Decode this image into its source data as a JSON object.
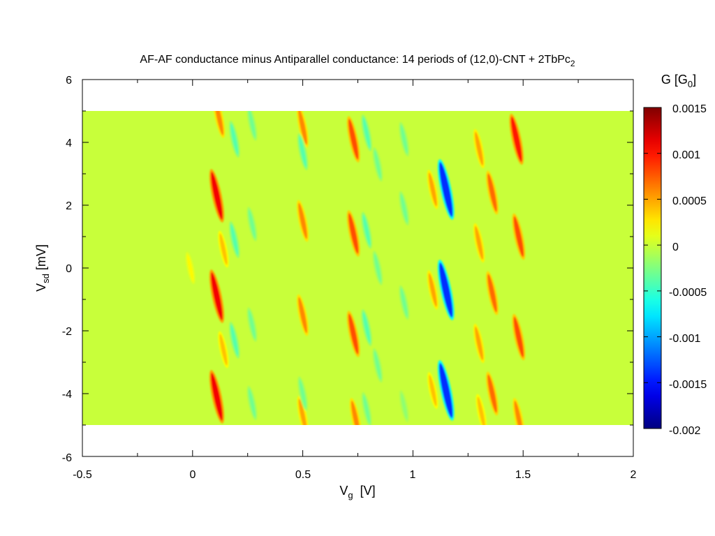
{
  "chart_data": {
    "type": "heatmap",
    "title": "AF-AF conductance minus Antiparallel conductance: 14 periods of (12,0)-CNT + 2TbPc",
    "title_subscript": "2",
    "xlabel_main": "V",
    "xlabel_sub": "g",
    "xlabel_unit": "  [V]",
    "ylabel_main": "V",
    "ylabel_sub": "sd",
    "ylabel_unit": " [mV]",
    "colorbar_label_main": "G [G",
    "colorbar_label_sub": "0",
    "colorbar_label_end": "]",
    "xlim": [
      -0.5,
      2
    ],
    "ylim": [
      -6,
      6
    ],
    "data_extent": {
      "x": [
        -0.5,
        2
      ],
      "y": [
        -5,
        5
      ]
    },
    "x_ticks": [
      "-0.5",
      "0",
      "0.5",
      "1",
      "1.5",
      "2"
    ],
    "y_ticks": [
      "6",
      "4",
      "2",
      "0",
      "-2",
      "-4",
      "-6"
    ],
    "colorbar_range": [
      -0.002,
      0.0015
    ],
    "colorbar_ticks": [
      "0.0015",
      "0.001",
      "0.0005",
      "0",
      "-0.0005",
      "-0.001",
      "-0.0015",
      "-0.002"
    ],
    "colormap": "jet",
    "background_value": 0,
    "background_color": "#c8ff3a",
    "features": [
      {
        "vg": 0.11,
        "vsd": 2.3,
        "amp": 0.0011
      },
      {
        "vg": 0.11,
        "vsd": -0.9,
        "amp": 0.0011
      },
      {
        "vg": 0.11,
        "vsd": -4.1,
        "amp": 0.0011
      },
      {
        "vg": 0.12,
        "vsd": 4.8,
        "amp": 0.0006
      },
      {
        "vg": 0.14,
        "vsd": 0.6,
        "amp": 0.0004
      },
      {
        "vg": 0.14,
        "vsd": -2.6,
        "amp": 0.0004
      },
      {
        "vg": -0.01,
        "vsd": 0.0,
        "amp": 0.0002
      },
      {
        "vg": 0.19,
        "vsd": 4.1,
        "amp": -0.0004
      },
      {
        "vg": 0.19,
        "vsd": 0.9,
        "amp": -0.0004
      },
      {
        "vg": 0.19,
        "vsd": -2.3,
        "amp": -0.0004
      },
      {
        "vg": 0.27,
        "vsd": 4.6,
        "amp": -0.0003
      },
      {
        "vg": 0.27,
        "vsd": 1.4,
        "amp": -0.0003
      },
      {
        "vg": 0.27,
        "vsd": -1.8,
        "amp": -0.0003
      },
      {
        "vg": 0.27,
        "vsd": -4.3,
        "amp": -0.0003
      },
      {
        "vg": 0.5,
        "vsd": 4.5,
        "amp": 0.0006
      },
      {
        "vg": 0.5,
        "vsd": 1.5,
        "amp": 0.0006
      },
      {
        "vg": 0.5,
        "vsd": -1.5,
        "amp": 0.0006
      },
      {
        "vg": 0.5,
        "vsd": -4.7,
        "amp": 0.0005
      },
      {
        "vg": 0.5,
        "vsd": 3.7,
        "amp": -0.0004
      },
      {
        "vg": 0.5,
        "vsd": -4.0,
        "amp": -0.0003
      },
      {
        "vg": 0.73,
        "vsd": 4.1,
        "amp": 0.0008
      },
      {
        "vg": 0.73,
        "vsd": 1.1,
        "amp": 0.0008
      },
      {
        "vg": 0.73,
        "vsd": -2.1,
        "amp": 0.0008
      },
      {
        "vg": 0.74,
        "vsd": -4.8,
        "amp": 0.0006
      },
      {
        "vg": 0.79,
        "vsd": 4.3,
        "amp": -0.0004
      },
      {
        "vg": 0.79,
        "vsd": 1.2,
        "amp": -0.0004
      },
      {
        "vg": 0.79,
        "vsd": -1.9,
        "amp": -0.0004
      },
      {
        "vg": 0.79,
        "vsd": -4.5,
        "amp": -0.0003
      },
      {
        "vg": 0.84,
        "vsd": 3.3,
        "amp": -0.0003
      },
      {
        "vg": 0.84,
        "vsd": 0.0,
        "amp": -0.0003
      },
      {
        "vg": 0.84,
        "vsd": -3.1,
        "amp": -0.0003
      },
      {
        "vg": 0.96,
        "vsd": 4.1,
        "amp": -0.0003
      },
      {
        "vg": 0.96,
        "vsd": 1.9,
        "amp": -0.0003
      },
      {
        "vg": 0.96,
        "vsd": -1.1,
        "amp": -0.0003
      },
      {
        "vg": 0.96,
        "vsd": -4.4,
        "amp": -0.0002
      },
      {
        "vg": 1.09,
        "vsd": 2.5,
        "amp": 0.0005
      },
      {
        "vg": 1.09,
        "vsd": -0.7,
        "amp": 0.0005
      },
      {
        "vg": 1.09,
        "vsd": -3.9,
        "amp": 0.0004
      },
      {
        "vg": 1.15,
        "vsd": 2.5,
        "amp": -0.0014
      },
      {
        "vg": 1.15,
        "vsd": -0.7,
        "amp": -0.0014
      },
      {
        "vg": 1.15,
        "vsd": -3.9,
        "amp": -0.0014
      },
      {
        "vg": 1.3,
        "vsd": 3.8,
        "amp": 0.0005
      },
      {
        "vg": 1.3,
        "vsd": 0.8,
        "amp": 0.0005
      },
      {
        "vg": 1.3,
        "vsd": -2.4,
        "amp": 0.0005
      },
      {
        "vg": 1.31,
        "vsd": -4.6,
        "amp": 0.0004
      },
      {
        "vg": 1.36,
        "vsd": 2.4,
        "amp": 0.0007
      },
      {
        "vg": 1.36,
        "vsd": -0.8,
        "amp": 0.0007
      },
      {
        "vg": 1.36,
        "vsd": -4.0,
        "amp": 0.0007
      },
      {
        "vg": 1.47,
        "vsd": 4.1,
        "amp": 0.001
      },
      {
        "vg": 1.48,
        "vsd": 1.0,
        "amp": 0.0008
      },
      {
        "vg": 1.48,
        "vsd": -2.2,
        "amp": 0.0008
      },
      {
        "vg": 1.48,
        "vsd": -4.8,
        "amp": 0.0006
      }
    ]
  }
}
